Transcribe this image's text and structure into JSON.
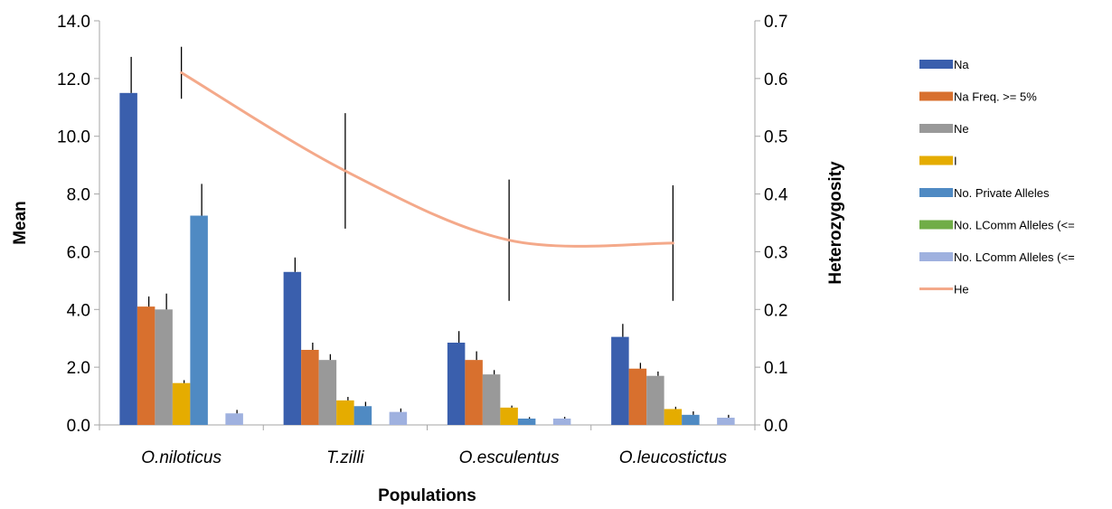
{
  "chart_data": {
    "type": "bar",
    "xlabel": "Populations",
    "ylabel": "Mean",
    "y2label": "Heterozygosity",
    "ylim": [
      0,
      14
    ],
    "y2lim": [
      0,
      0.7
    ],
    "yticks": [
      "0.0",
      "2.0",
      "4.0",
      "6.0",
      "8.0",
      "10.0",
      "12.0",
      "14.0"
    ],
    "y2ticks": [
      "0.0",
      "0.1",
      "0.2",
      "0.3",
      "0.4",
      "0.5",
      "0.6",
      "0.7"
    ],
    "grid": false,
    "legend_position": "right",
    "categories": [
      "O.niloticus",
      "T.zilli",
      "O.esculentus",
      "O.leucostictus"
    ],
    "series": [
      {
        "name": "Na",
        "color": "#3a5fad",
        "values": [
          11.5,
          5.3,
          2.85,
          3.05
        ],
        "errors": [
          1.25,
          0.5,
          0.4,
          0.45
        ]
      },
      {
        "name": "Na Freq. >= 5%",
        "color": "#d8702e",
        "values": [
          4.1,
          2.6,
          2.25,
          1.95
        ],
        "errors": [
          0.35,
          0.25,
          0.3,
          0.2
        ]
      },
      {
        "name": "Ne",
        "color": "#999999",
        "values": [
          4.0,
          2.25,
          1.75,
          1.7
        ],
        "errors": [
          0.55,
          0.2,
          0.15,
          0.15
        ]
      },
      {
        "name": "I",
        "color": "#e5ac00",
        "values": [
          1.45,
          0.85,
          0.6,
          0.55
        ],
        "errors": [
          0.1,
          0.12,
          0.07,
          0.08
        ]
      },
      {
        "name": "No. Private Alleles",
        "color": "#4f8ac3",
        "values": [
          7.25,
          0.65,
          0.22,
          0.35
        ],
        "errors": [
          1.1,
          0.15,
          0.05,
          0.12
        ]
      },
      {
        "name": "No. LComm Alleles (<=",
        "color": "#70ad47",
        "values": [
          0,
          0,
          0,
          0
        ],
        "errors": [
          0,
          0,
          0,
          0
        ]
      },
      {
        "name": "No. LComm Alleles (<=",
        "color": "#9fb1df",
        "values": [
          0.4,
          0.45,
          0.22,
          0.25
        ],
        "errors": [
          0.12,
          0.12,
          0.06,
          0.1
        ]
      }
    ],
    "line_series": [
      {
        "name": "He",
        "axis": "y2",
        "color": "#f4a98a",
        "values": [
          0.61,
          0.44,
          0.32,
          0.315
        ],
        "errors": [
          0.045,
          0.1,
          0.105,
          0.1
        ]
      }
    ]
  }
}
